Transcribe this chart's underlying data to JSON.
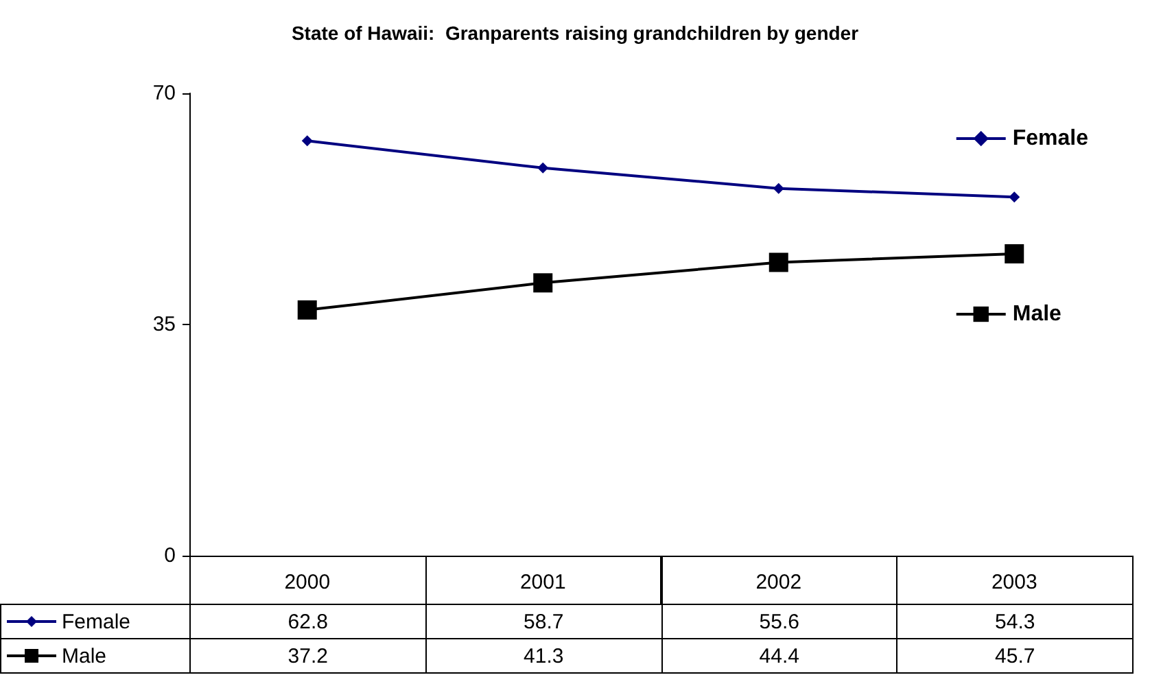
{
  "chart_data": {
    "type": "line",
    "title": "State of Hawaii:  Granparents raising grandchildren by gender",
    "categories": [
      "2000",
      "2001",
      "2002",
      "2003"
    ],
    "series": [
      {
        "name": "Female",
        "color": "#000080",
        "marker": "diamond",
        "values": [
          62.8,
          58.7,
          55.6,
          54.3
        ]
      },
      {
        "name": "Male",
        "color": "#000000",
        "marker": "square",
        "values": [
          37.2,
          41.3,
          44.4,
          45.7
        ]
      }
    ],
    "ylim": [
      0,
      70
    ],
    "yticks": [
      0,
      35,
      70
    ],
    "grid": false,
    "legend": "right",
    "data_labels": true,
    "line_style": "solid"
  }
}
